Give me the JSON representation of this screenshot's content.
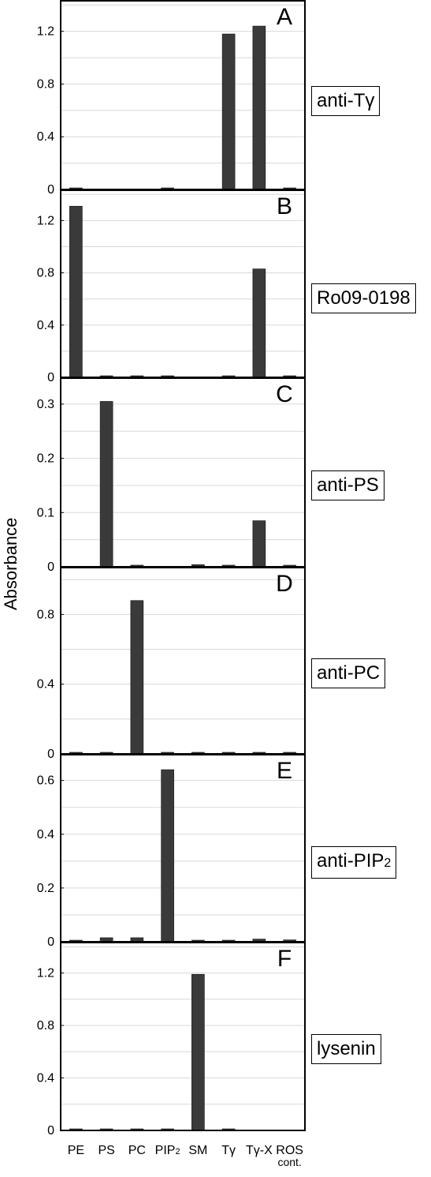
{
  "chart_data": {
    "type": "bar",
    "ylabel": "Absorbance",
    "categories": [
      "PE",
      "PS",
      "PC",
      "PIP2",
      "SM",
      "Tγ",
      "Tγ-X",
      "ROS cont."
    ],
    "category_labels": [
      {
        "main": "PE",
        "sub": "",
        "line2": ""
      },
      {
        "main": "PS",
        "sub": "",
        "line2": ""
      },
      {
        "main": "PC",
        "sub": "",
        "line2": ""
      },
      {
        "main": "PIP",
        "sub": "2",
        "line2": ""
      },
      {
        "main": "SM",
        "sub": "",
        "line2": ""
      },
      {
        "main": "Tγ",
        "sub": "",
        "line2": ""
      },
      {
        "main": "Tγ-X",
        "sub": "",
        "line2": ""
      },
      {
        "main": "ROS",
        "sub": "",
        "line2": "cont."
      }
    ],
    "bar_color": "#3a3a3a",
    "grid": true,
    "panels": [
      {
        "letter": "A",
        "label": "anti-Tγ",
        "label_sub": "",
        "ylim": [
          0,
          1.42
        ],
        "yticks": [
          {
            "v": 0,
            "t": "0"
          },
          {
            "v": 0.4,
            "t": "0.4"
          },
          {
            "v": 0.8,
            "t": "0.8"
          },
          {
            "v": 1.2,
            "t": "1.2"
          }
        ],
        "grid": [
          0.2,
          0.4,
          0.6,
          0.8,
          1.0,
          1.2,
          1.4
        ],
        "values": [
          0.01,
          0,
          0,
          0.01,
          0,
          1.18,
          1.24,
          0.01
        ]
      },
      {
        "letter": "B",
        "label": "Ro09-0198",
        "label_sub": "",
        "ylim": [
          0,
          1.42
        ],
        "yticks": [
          {
            "v": 0,
            "t": "0"
          },
          {
            "v": 0.4,
            "t": "0.4"
          },
          {
            "v": 0.8,
            "t": "0.8"
          },
          {
            "v": 1.2,
            "t": "1.2"
          }
        ],
        "grid": [
          0.2,
          0.4,
          0.6,
          0.8,
          1.0,
          1.2,
          1.4
        ],
        "values": [
          1.31,
          0.01,
          0.01,
          0.01,
          0,
          0.01,
          0.83,
          0.01
        ]
      },
      {
        "letter": "C",
        "label": "anti-PS",
        "label_sub": "",
        "ylim": [
          0,
          0.345
        ],
        "yticks": [
          {
            "v": 0,
            "t": "0"
          },
          {
            "v": 0.1,
            "t": "0.1"
          },
          {
            "v": 0.2,
            "t": "0.2"
          },
          {
            "v": 0.3,
            "t": "0.3"
          }
        ],
        "grid": [
          0.05,
          0.1,
          0.15,
          0.2,
          0.25,
          0.3
        ],
        "values": [
          0,
          0.305,
          0.003,
          0,
          0.004,
          0.003,
          0.085,
          0.002
        ]
      },
      {
        "letter": "D",
        "label": "anti-PC",
        "label_sub": "",
        "ylim": [
          0,
          1.06
        ],
        "yticks": [
          {
            "v": 0,
            "t": "0"
          },
          {
            "v": 0.4,
            "t": "0.4"
          },
          {
            "v": 0.8,
            "t": "0.8"
          }
        ],
        "grid": [
          0.2,
          0.4,
          0.6,
          0.8,
          1.0
        ],
        "values": [
          0.005,
          0.007,
          0.88,
          0.005,
          0.005,
          0.007,
          0.007,
          0.005
        ]
      },
      {
        "letter": "E",
        "label": "anti-PIP",
        "label_sub": "2",
        "ylim": [
          0,
          0.69
        ],
        "yticks": [
          {
            "v": 0,
            "t": "0"
          },
          {
            "v": 0.2,
            "t": "0.2"
          },
          {
            "v": 0.4,
            "t": "0.4"
          },
          {
            "v": 0.6,
            "t": "0.6"
          }
        ],
        "grid": [
          0.1,
          0.2,
          0.3,
          0.4,
          0.5,
          0.6
        ],
        "values": [
          0.005,
          0.015,
          0.015,
          0.64,
          0.005,
          0.005,
          0.01,
          0.007
        ]
      },
      {
        "letter": "F",
        "label": "lysenin",
        "label_sub": "",
        "ylim": [
          0,
          1.42
        ],
        "yticks": [
          {
            "v": 0,
            "t": "0"
          },
          {
            "v": 0.4,
            "t": "0.4"
          },
          {
            "v": 0.8,
            "t": "0.8"
          },
          {
            "v": 1.2,
            "t": "1.2"
          }
        ],
        "grid": [
          0.2,
          0.4,
          0.6,
          0.8,
          1.0,
          1.2,
          1.4
        ],
        "values": [
          0.005,
          0.005,
          0.01,
          0.005,
          1.19,
          0.005,
          0,
          0
        ]
      }
    ]
  }
}
